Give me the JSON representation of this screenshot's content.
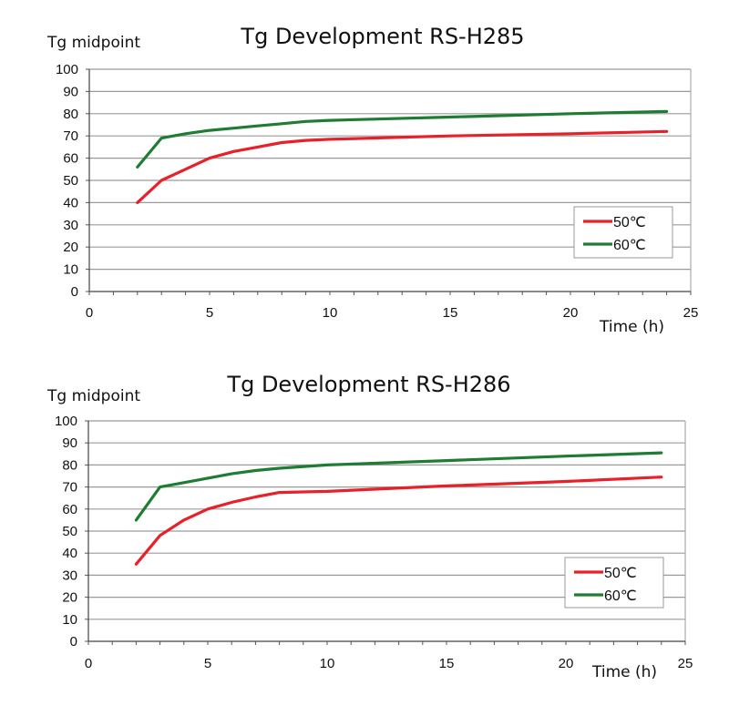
{
  "chart_data": [
    {
      "type": "line",
      "title": "Tg Development RS-H285",
      "ylabel": "Tg midpoint",
      "xlabel": "Time (h)",
      "xlim": [
        0,
        25
      ],
      "ylim": [
        0,
        100
      ],
      "xticks": [
        0,
        5,
        10,
        15,
        20,
        25
      ],
      "yticks": [
        0,
        10,
        20,
        30,
        40,
        50,
        60,
        70,
        80,
        90,
        100
      ],
      "grid": "horizontal",
      "legend": "bottom-right",
      "series": [
        {
          "name": "50℃",
          "color": "#e8202a",
          "x": [
            2,
            3,
            4,
            5,
            6,
            7,
            8,
            9,
            10,
            15,
            20,
            24
          ],
          "y": [
            40,
            50,
            55,
            60,
            63,
            65,
            67,
            68,
            68.5,
            70,
            71,
            72
          ]
        },
        {
          "name": "60℃",
          "color": "#1e7d32",
          "x": [
            2,
            3,
            4,
            5,
            6,
            7,
            8,
            9,
            10,
            15,
            20,
            24
          ],
          "y": [
            56,
            69,
            71,
            72.5,
            73.5,
            74.5,
            75.5,
            76.5,
            77,
            78.5,
            80,
            81
          ]
        }
      ]
    },
    {
      "type": "line",
      "title": "Tg Development RS-H286",
      "ylabel": "Tg midpoint",
      "xlabel": "Time (h)",
      "xlim": [
        0,
        25
      ],
      "ylim": [
        0,
        100
      ],
      "xticks": [
        0,
        5,
        10,
        15,
        20,
        25
      ],
      "yticks": [
        0,
        10,
        20,
        30,
        40,
        50,
        60,
        70,
        80,
        90,
        100
      ],
      "grid": "horizontal",
      "legend": "bottom-right",
      "series": [
        {
          "name": "50℃",
          "color": "#e8202a",
          "x": [
            2,
            3,
            4,
            5,
            6,
            7,
            8,
            10,
            15,
            20,
            24
          ],
          "y": [
            35,
            48,
            55,
            60,
            63,
            65.5,
            67.5,
            68,
            70.5,
            72.5,
            74.5
          ]
        },
        {
          "name": "60℃",
          "color": "#1e7d32",
          "x": [
            2,
            3,
            4,
            5,
            6,
            7,
            8,
            10,
            15,
            20,
            24
          ],
          "y": [
            55,
            70,
            72,
            74,
            76,
            77.5,
            78.5,
            80,
            82,
            84,
            85.5
          ]
        }
      ]
    }
  ]
}
